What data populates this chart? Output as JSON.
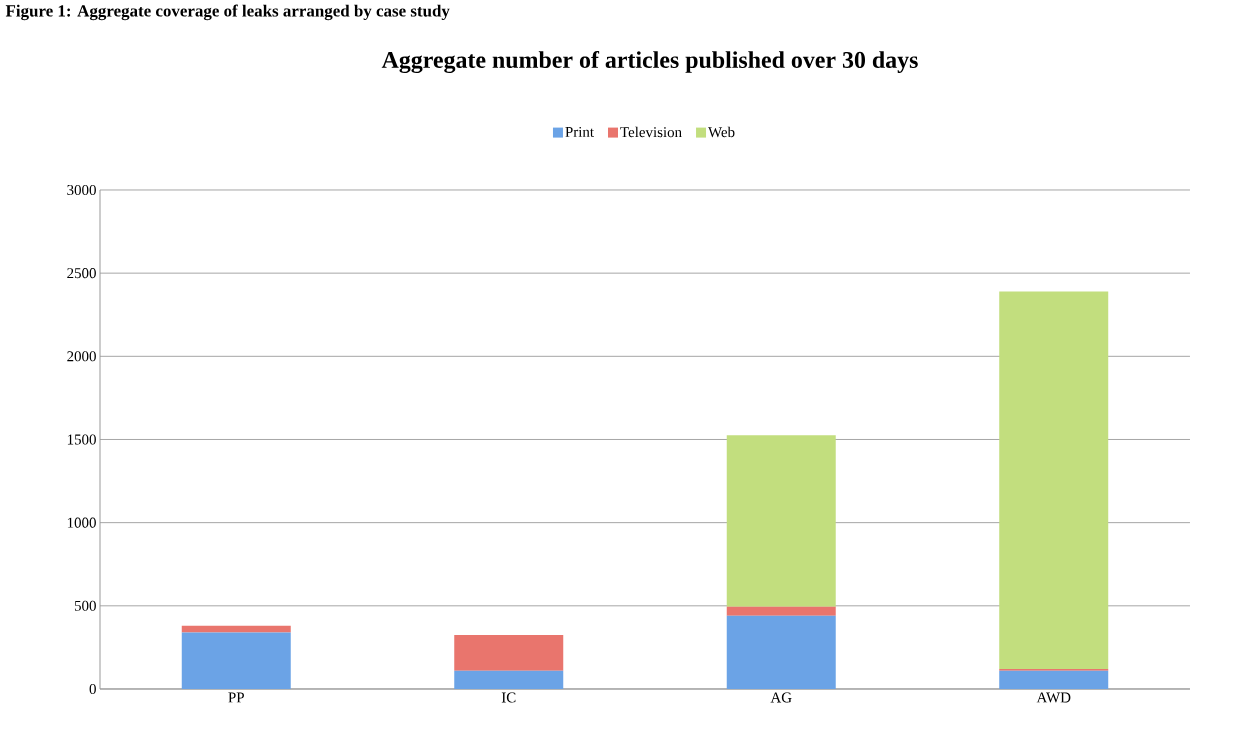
{
  "chart_data": {
    "type": "bar",
    "title": "Aggregate number of articles published over 30 days",
    "annotations": [
      "Figure 1: Aggregate coverage of leaks arranged by case study"
    ],
    "categories": [
      "PP",
      "IC",
      "AG",
      "AWD"
    ],
    "stacked": true,
    "series": [
      {
        "name": "Print",
        "color": "#6ba3e6",
        "values": [
          340,
          110,
          440,
          110
        ]
      },
      {
        "name": "Television",
        "color": "#e9756d",
        "values": [
          40,
          215,
          55,
          10
        ]
      },
      {
        "name": "Web",
        "color": "#c2de7e",
        "values": [
          0,
          0,
          1030,
          2270
        ]
      }
    ],
    "ylim": [
      0,
      3000
    ],
    "yticks": [
      0,
      500,
      1000,
      1500,
      2000,
      2500,
      3000
    ],
    "grid": "y",
    "legend": "top"
  }
}
